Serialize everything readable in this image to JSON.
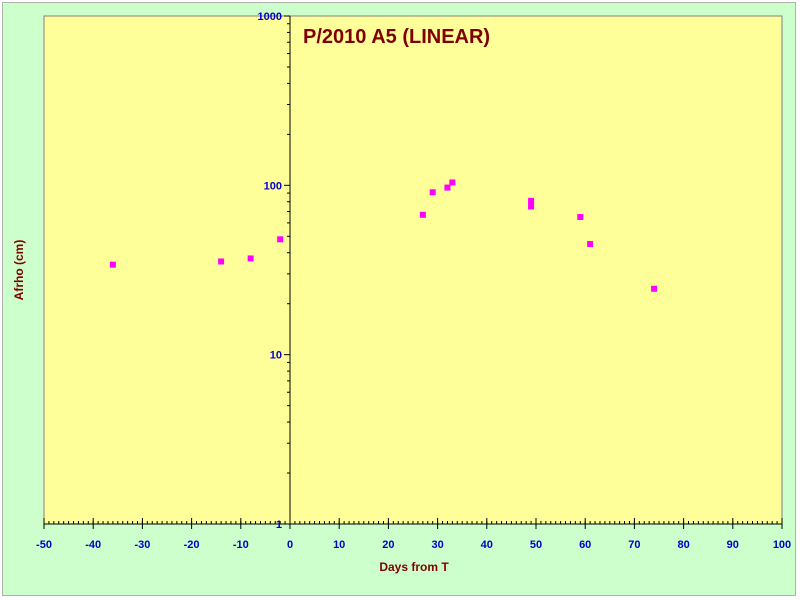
{
  "chart_data": {
    "type": "scatter",
    "title": "P/2010 A5 (LINEAR)",
    "xlabel": "Days from T",
    "ylabel": "Afrho (cm)",
    "xlim": [
      -50,
      100
    ],
    "ylim": [
      1,
      1000
    ],
    "yscale": "log",
    "x_major_ticks": [
      -50,
      -40,
      -30,
      -20,
      -10,
      0,
      10,
      20,
      30,
      40,
      50,
      60,
      70,
      80,
      90,
      100
    ],
    "x_minor_step": 1,
    "y_major_ticks": [
      1,
      10,
      100,
      1000
    ],
    "grid": false,
    "colors": {
      "plot_background": "#ffff99",
      "chart_background": "#ccffcc",
      "marker": "#ff00ff",
      "tick_labels": "#0000cc",
      "axis_titles": "#800000",
      "title": "#800000",
      "axes": "#000000"
    },
    "points": [
      {
        "x": -36,
        "y": 34
      },
      {
        "x": -14,
        "y": 35.5
      },
      {
        "x": -8,
        "y": 37
      },
      {
        "x": -2,
        "y": 48
      },
      {
        "x": 27,
        "y": 67
      },
      {
        "x": 29,
        "y": 91
      },
      {
        "x": 32,
        "y": 97
      },
      {
        "x": 33,
        "y": 104
      },
      {
        "x": 49,
        "y": 75
      },
      {
        "x": 49,
        "y": 81
      },
      {
        "x": 59,
        "y": 65
      },
      {
        "x": 61,
        "y": 45
      },
      {
        "x": 74,
        "y": 24.5
      }
    ]
  }
}
